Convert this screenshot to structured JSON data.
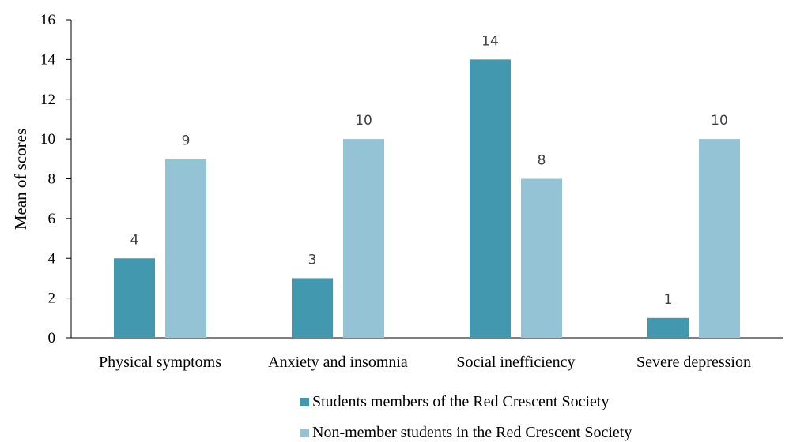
{
  "chart_data": {
    "type": "bar",
    "title": "",
    "xlabel": "",
    "ylabel": "Mean of scores",
    "ylim": [
      0,
      16
    ],
    "yticks": [
      0,
      2,
      4,
      6,
      8,
      10,
      12,
      14,
      16
    ],
    "grid": false,
    "legend_position": "bottom",
    "categories": [
      "Physical symptoms",
      "Anxiety and insomnia",
      "Social inefficiency",
      "Severe depression"
    ],
    "series": [
      {
        "name": "Students members of the Red Crescent Society",
        "values": [
          4,
          3,
          14,
          1
        ],
        "color": "#4198AF"
      },
      {
        "name": "Non-member students in the Red Crescent Society",
        "values": [
          9,
          10,
          8,
          10
        ],
        "color": "#93C3D5"
      }
    ]
  }
}
